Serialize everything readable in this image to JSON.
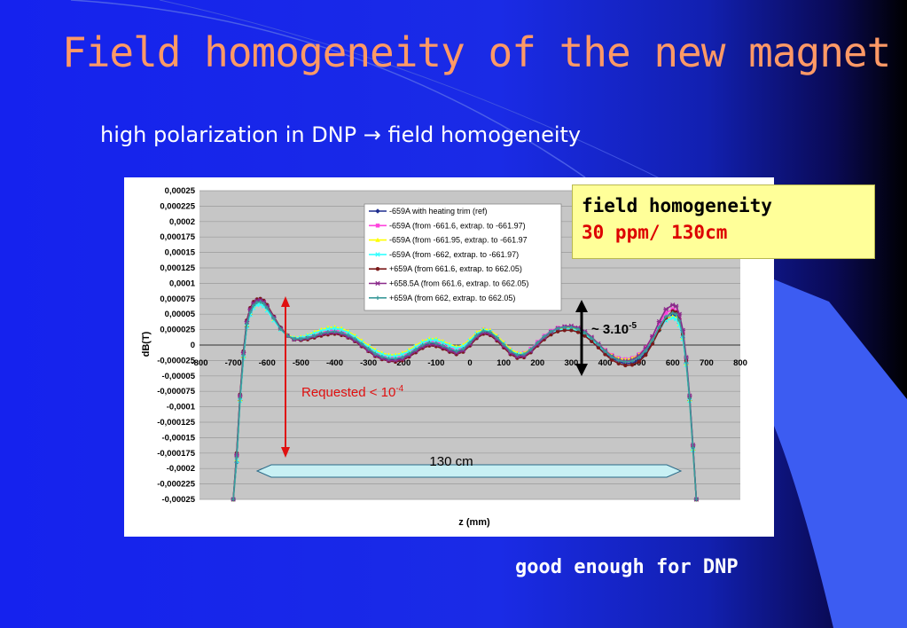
{
  "slide": {
    "title": "Field homogeneity of the new magnet",
    "subtitle": "high polarization in DNP",
    "subtitle_arrow": "→",
    "subtitle_tail": "field homogeneity",
    "highlight": {
      "line1": "field homogeneity",
      "line2": "30 ppm/ 130cm"
    },
    "conclusion": "good enough for DNP"
  },
  "colors": {
    "title": "#ff9966",
    "highlight_bg": "#ffff99",
    "highlight_red": "#dd0000",
    "background": "#1a2be6"
  },
  "chart_data": {
    "type": "line",
    "title": "",
    "xlabel": "z (mm)",
    "ylabel": "dB(T)",
    "xlim": [
      -800,
      800
    ],
    "ylim": [
      -0.00025,
      0.00025
    ],
    "x_ticks": [
      "-800",
      "-700",
      "-600",
      "-500",
      "-400",
      "-300",
      "-200",
      "-100",
      "0",
      "100",
      "200",
      "300",
      "400",
      "500",
      "600",
      "700",
      "800"
    ],
    "y_ticks": [
      "0,00025",
      "0,000225",
      "0,0002",
      "0,000175",
      "0,00015",
      "0,000125",
      "0,0001",
      "0,000075",
      "0,00005",
      "0,000025",
      "0",
      "-0,000025",
      "-0,00005",
      "-0,000075",
      "-0,0001",
      "-0,000125",
      "-0,00015",
      "-0,000175",
      "-0,0002",
      "-0,000225",
      "-0,00025"
    ],
    "grid": true,
    "legend_position": "top-right",
    "x": [
      -700,
      -690,
      -680,
      -670,
      -660,
      -650,
      -640,
      -630,
      -620,
      -610,
      -600,
      -580,
      -560,
      -540,
      -520,
      -500,
      -480,
      -460,
      -440,
      -420,
      -400,
      -380,
      -360,
      -340,
      -320,
      -300,
      -280,
      -260,
      -240,
      -220,
      -200,
      -180,
      -160,
      -140,
      -120,
      -100,
      -80,
      -60,
      -40,
      -20,
      0,
      20,
      40,
      60,
      80,
      100,
      120,
      140,
      160,
      180,
      200,
      220,
      240,
      260,
      280,
      300,
      320,
      340,
      360,
      380,
      400,
      420,
      440,
      460,
      480,
      500,
      520,
      540,
      560,
      580,
      600,
      610,
      620,
      630,
      640,
      650,
      660,
      670
    ],
    "series": [
      {
        "name": "-659A with heating trim (ref)",
        "color": "#1f2f8f",
        "marker": "diamond",
        "values": [
          -0.00025,
          -0.00019,
          -9e-05,
          -2e-05,
          3e-05,
          5e-05,
          6.2e-05,
          6.8e-05,
          7e-05,
          6.8e-05,
          6.2e-05,
          4.5e-05,
          2.8e-05,
          1.6e-05,
          1e-05,
          9e-06,
          1.1e-05,
          1.4e-05,
          1.7e-05,
          1.9e-05,
          2e-05,
          1.8e-05,
          1.4e-05,
          8e-06,
          1e-06,
          -7e-06,
          -1.5e-05,
          -2e-05,
          -2.3e-05,
          -2.4e-05,
          -2.2e-05,
          -1.6e-05,
          -9e-06,
          -2e-06,
          2e-06,
          1e-06,
          -3e-06,
          -8e-06,
          -1.2e-05,
          -8e-06,
          2e-06,
          1.4e-05,
          2.1e-05,
          1.9e-05,
          1e-05,
          -1e-06,
          -1.2e-05,
          -1.8e-05,
          -1.7e-05,
          -9e-06,
          2e-06,
          1.2e-05,
          2e-05,
          2.5e-05,
          2.7e-05,
          2.7e-05,
          2.4e-05,
          1.8e-05,
          9e-06,
          -1e-06,
          -1.2e-05,
          -2.1e-05,
          -2.7e-05,
          -3e-05,
          -2.9e-05,
          -2.4e-05,
          -1.3e-05,
          4e-06,
          2.4e-05,
          4.1e-05,
          4.8e-05,
          4.6e-05,
          3.5e-05,
          1.2e-05,
          -3e-05,
          -9e-05,
          -0.00017,
          -0.00025
        ]
      },
      {
        "name": "-659A (from -661.6, extrap. to -661.97)",
        "color": "#ff44dd",
        "marker": "square",
        "values": [
          -0.00025,
          -0.00018,
          -8.5e-05,
          -1.5e-05,
          3.5e-05,
          5.5e-05,
          6.6e-05,
          7.1e-05,
          7.2e-05,
          6.9e-05,
          6.2e-05,
          4.4e-05,
          2.7e-05,
          1.5e-05,
          1e-05,
          1e-05,
          1.2e-05,
          1.6e-05,
          2e-05,
          2.3e-05,
          2.4e-05,
          2.2e-05,
          1.8e-05,
          1.2e-05,
          4e-06,
          -4e-06,
          -1.2e-05,
          -1.7e-05,
          -2e-05,
          -2e-05,
          -1.8e-05,
          -1.2e-05,
          -5e-06,
          2e-06,
          6e-06,
          5e-06,
          1e-06,
          -4e-06,
          -8e-06,
          -4e-06,
          6e-06,
          1.8e-05,
          2.5e-05,
          2.3e-05,
          1.4e-05,
          3e-06,
          -8e-06,
          -1.4e-05,
          -1.3e-05,
          -6e-06,
          5e-06,
          1.5e-05,
          2.3e-05,
          2.8e-05,
          3e-05,
          3e-05,
          2.7e-05,
          2.1e-05,
          1.2e-05,
          2e-06,
          -8e-06,
          -1.6e-05,
          -2.1e-05,
          -2.3e-05,
          -2.1e-05,
          -1.5e-05,
          -4e-06,
          1.4e-05,
          3.4e-05,
          5.2e-05,
          5.8e-05,
          5.5e-05,
          4.2e-05,
          1.8e-05,
          -2.5e-05,
          -8.5e-05,
          -0.000165,
          -0.00025
        ]
      },
      {
        "name": "-659A (from -661.95,  extrap. to -661.97",
        "color": "#ffff00",
        "marker": "triangle",
        "values": [
          -0.00025,
          -0.000185,
          -8.8e-05,
          -1.8e-05,
          3.3e-05,
          5.2e-05,
          6.3e-05,
          6.8e-05,
          6.9e-05,
          6.6e-05,
          5.9e-05,
          4.2e-05,
          2.6e-05,
          1.6e-05,
          1.2e-05,
          1.3e-05,
          1.6e-05,
          2.1e-05,
          2.5e-05,
          2.8e-05,
          2.9e-05,
          2.7e-05,
          2.2e-05,
          1.5e-05,
          7e-06,
          -1e-06,
          -8e-06,
          -1.3e-05,
          -1.6e-05,
          -1.6e-05,
          -1.3e-05,
          -8e-06,
          -1e-06,
          6e-06,
          1e-05,
          1e-05,
          6e-06,
          1e-06,
          -3e-06,
          0,
          9e-06,
          2e-05,
          2.6e-05,
          2.4e-05,
          1.5e-05,
          4e-06,
          -7e-06,
          -1.3e-05,
          -1.3e-05,
          -7e-06,
          3e-06,
          1.3e-05,
          2.1e-05,
          2.6e-05,
          2.8e-05,
          2.8e-05,
          2.5e-05,
          1.9e-05,
          1.1e-05,
          1e-06,
          -9e-06,
          -1.7e-05,
          -2.2e-05,
          -2.4e-05,
          -2.2e-05,
          -1.6e-05,
          -6e-06,
          9e-06,
          2.7e-05,
          4.2e-05,
          4.6e-05,
          4.4e-05,
          3.4e-05,
          1.2e-05,
          -3e-05,
          -8.8e-05,
          -0.000168,
          -0.00025
        ]
      },
      {
        "name": "-659A (from -662,  extrap. to -661.97)",
        "color": "#33ffff",
        "marker": "x",
        "values": [
          -0.00025,
          -0.000188,
          -9e-05,
          -2e-05,
          3e-05,
          4.9e-05,
          6e-05,
          6.5e-05,
          6.6e-05,
          6.3e-05,
          5.6e-05,
          4e-05,
          2.5e-05,
          1.5e-05,
          1.1e-05,
          1.2e-05,
          1.5e-05,
          1.9e-05,
          2.3e-05,
          2.6e-05,
          2.7e-05,
          2.5e-05,
          2e-05,
          1.3e-05,
          5e-06,
          -3e-06,
          -1e-05,
          -1.5e-05,
          -1.8e-05,
          -1.8e-05,
          -1.5e-05,
          -1e-05,
          -3e-06,
          4e-06,
          8e-06,
          8e-06,
          4e-06,
          -1e-06,
          -5e-06,
          -2e-06,
          7e-06,
          1.8e-05,
          2.4e-05,
          2.2e-05,
          1.3e-05,
          2e-06,
          -9e-06,
          -1.5e-05,
          -1.5e-05,
          -9e-06,
          1e-06,
          1.1e-05,
          1.9e-05,
          2.4e-05,
          2.6e-05,
          2.6e-05,
          2.3e-05,
          1.7e-05,
          9e-06,
          -1e-06,
          -1.1e-05,
          -1.9e-05,
          -2.4e-05,
          -2.6e-05,
          -2.4e-05,
          -1.8e-05,
          -8e-06,
          7e-06,
          2.5e-05,
          4e-05,
          4.4e-05,
          4.2e-05,
          3.2e-05,
          1e-05,
          -3.2e-05,
          -9e-05,
          -0.00017,
          -0.00025
        ]
      },
      {
        "name": "+659A (from 661.6, extrap. to 662.05)",
        "color": "#7a1a1a",
        "marker": "circle",
        "values": [
          -0.00025,
          -0.000175,
          -8e-05,
          -1e-05,
          4e-05,
          6e-05,
          7e-05,
          7.4e-05,
          7.5e-05,
          7.2e-05,
          6.5e-05,
          4.6e-05,
          2.8e-05,
          1.5e-05,
          9e-06,
          8e-06,
          9e-06,
          1.2e-05,
          1.5e-05,
          1.7e-05,
          1.8e-05,
          1.6e-05,
          1.2e-05,
          6e-06,
          -2e-06,
          -1e-05,
          -1.8e-05,
          -2.3e-05,
          -2.6e-05,
          -2.7e-05,
          -2.5e-05,
          -1.9e-05,
          -1.2e-05,
          -5e-06,
          -1e-06,
          -2e-06,
          -6e-06,
          -1.1e-05,
          -1.5e-05,
          -1.1e-05,
          -1e-06,
          1.1e-05,
          1.8e-05,
          1.6e-05,
          7e-06,
          -4e-06,
          -1.5e-05,
          -2.1e-05,
          -2e-05,
          -1.2e-05,
          -1e-06,
          9e-06,
          1.7e-05,
          2.2e-05,
          2.4e-05,
          2.4e-05,
          2.1e-05,
          1.5e-05,
          6e-06,
          -4e-06,
          -1.5e-05,
          -2.4e-05,
          -3e-05,
          -3.3e-05,
          -3.2e-05,
          -2.7e-05,
          -1.6e-05,
          2e-06,
          2.4e-05,
          4.4e-05,
          5.5e-05,
          5.3e-05,
          4.2e-05,
          1.8e-05,
          -2.5e-05,
          -8.5e-05,
          -0.000165,
          -0.00025
        ]
      },
      {
        "name": "+658.5A (from 661.6, extrap. to 662.05)",
        "color": "#8a2a8a",
        "marker": "star",
        "values": [
          -0.00025,
          -0.000178,
          -8.2e-05,
          -1.2e-05,
          3.8e-05,
          5.8e-05,
          6.8e-05,
          7.2e-05,
          7.3e-05,
          7e-05,
          6.3e-05,
          4.5e-05,
          2.7e-05,
          1.5e-05,
          9e-06,
          9e-06,
          1.1e-05,
          1.4e-05,
          1.7e-05,
          1.9e-05,
          2e-05,
          1.8e-05,
          1.3e-05,
          7e-06,
          -1e-06,
          -9e-06,
          -1.7e-05,
          -2.2e-05,
          -2.5e-05,
          -2.5e-05,
          -2.3e-05,
          -1.7e-05,
          -1e-05,
          -3e-06,
          1e-06,
          0,
          -4e-06,
          -9e-06,
          -1.3e-05,
          -9e-06,
          1e-06,
          1.3e-05,
          2e-05,
          1.8e-05,
          9e-06,
          -2e-06,
          -1.3e-05,
          -1.9e-05,
          -1.8e-05,
          -1e-05,
          1e-06,
          1.2e-05,
          2.1e-05,
          2.7e-05,
          3e-05,
          3.1e-05,
          2.8e-05,
          2.2e-05,
          1.3e-05,
          2e-06,
          -9e-06,
          -1.8e-05,
          -2.4e-05,
          -2.6e-05,
          -2.4e-05,
          -1.7e-05,
          -5e-06,
          1.4e-05,
          3.8e-05,
          5.8e-05,
          6.5e-05,
          6.3e-05,
          5e-05,
          2.4e-05,
          -2e-05,
          -8.2e-05,
          -0.000162,
          -0.00025
        ]
      },
      {
        "name": "+659A (from 662, extrap. to 662.05)",
        "color": "#3a9a9a",
        "marker": "plus",
        "values": [
          -0.00025,
          -0.000182,
          -8.6e-05,
          -1.6e-05,
          3.4e-05,
          5.3e-05,
          6.4e-05,
          6.9e-05,
          7e-05,
          6.7e-05,
          6e-05,
          4.3e-05,
          2.6e-05,
          1.5e-05,
          1e-05,
          1e-05,
          1.2e-05,
          1.5e-05,
          1.9e-05,
          2.1e-05,
          2.2e-05,
          2e-05,
          1.6e-05,
          1e-05,
          2e-06,
          -6e-06,
          -1.4e-05,
          -1.9e-05,
          -2.2e-05,
          -2.2e-05,
          -2e-05,
          -1.4e-05,
          -7e-06,
          0,
          4e-06,
          3e-06,
          -1e-06,
          -6e-06,
          -1e-05,
          -6e-06,
          4e-06,
          1.6e-05,
          2.3e-05,
          2.1e-05,
          1.2e-05,
          1e-06,
          -1e-05,
          -1.6e-05,
          -1.5e-05,
          -7e-06,
          4e-06,
          1.4e-05,
          2.2e-05,
          2.7e-05,
          2.9e-05,
          2.9e-05,
          2.6e-05,
          2e-05,
          1.1e-05,
          1e-06,
          -1e-05,
          -1.9e-05,
          -2.5e-05,
          -2.7e-05,
          -2.6e-05,
          -2e-05,
          -9e-06,
          8e-06,
          2.9e-05,
          4.6e-05,
          5.2e-05,
          5e-05,
          3.9e-05,
          1.5e-05,
          -2.8e-05,
          -8.6e-05,
          -0.000166,
          -0.00025
        ]
      }
    ],
    "annotations": {
      "requested_label": "Requested < 10",
      "requested_exp": "-4",
      "amplitude_label": "~ 3.10",
      "amplitude_exp": "-5",
      "length_label": "130 cm"
    }
  }
}
